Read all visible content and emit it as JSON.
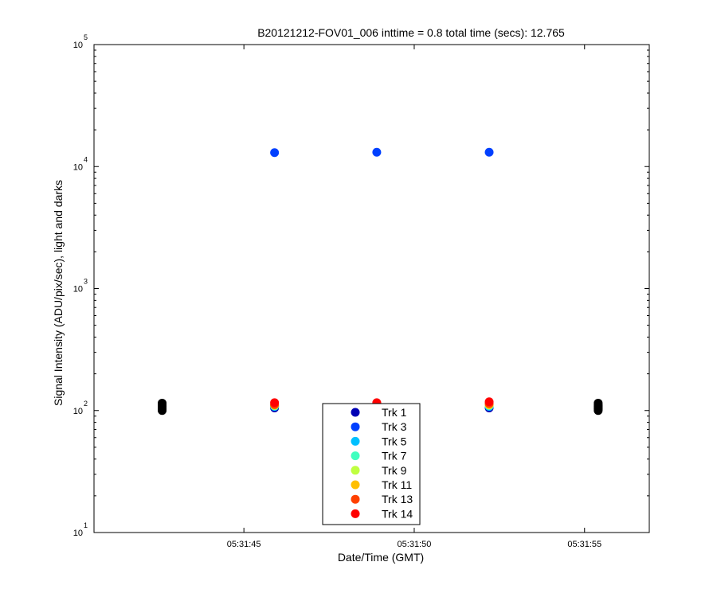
{
  "chart_data": {
    "type": "scatter",
    "title": "B20121212-FOV01_006 inttime = 0.8 total time (secs): 12.765",
    "xlabel": "Date/Time (GMT)",
    "ylabel": "Signal Intensity (ADU/pix/sec), light and darks",
    "y_scale": "log",
    "ylim": [
      10,
      100000
    ],
    "y_ticks": [
      {
        "value": 10,
        "base": "10",
        "exp": "1"
      },
      {
        "value": 100,
        "base": "10",
        "exp": "2"
      },
      {
        "value": 1000,
        "base": "10",
        "exp": "3"
      },
      {
        "value": 10000,
        "base": "10",
        "exp": "4"
      },
      {
        "value": 100000,
        "base": "10",
        "exp": "5"
      }
    ],
    "xlim": [
      "05:31:40.6",
      "05:31:56.9"
    ],
    "x_ticks": [
      "05:31:45",
      "05:31:50",
      "05:31:55"
    ],
    "grid": false,
    "legend_position": "bottom-center",
    "series": [
      {
        "name": "Trk 1",
        "color": "#0000b4",
        "x": [
          "05:31:45.9",
          "05:31:48.9",
          "05:31:52.2"
        ],
        "y": [
          105,
          112,
          105
        ]
      },
      {
        "name": "Trk 3",
        "color": "#0040ff",
        "x": [
          "05:31:45.9",
          "05:31:48.9",
          "05:31:52.2"
        ],
        "y": [
          13000,
          13100,
          13100
        ]
      },
      {
        "name": "Trk 5",
        "color": "#00c0ff",
        "x": [
          "05:31:45.9",
          "05:31:48.9",
          "05:31:52.2"
        ],
        "y": [
          108,
          113,
          108
        ]
      },
      {
        "name": "Trk 7",
        "color": "#40ffbf",
        "x": [
          "05:31:45.9",
          "05:31:48.9",
          "05:31:52.2"
        ],
        "y": [
          109,
          113,
          110
        ]
      },
      {
        "name": "Trk 9",
        "color": "#bfff40",
        "x": [
          "05:31:45.9",
          "05:31:48.9",
          "05:31:52.2"
        ],
        "y": [
          110,
          114,
          111
        ]
      },
      {
        "name": "Trk 11",
        "color": "#ffbf00",
        "x": [
          "05:31:45.9",
          "05:31:48.9",
          "05:31:52.2"
        ],
        "y": [
          111,
          114,
          112
        ]
      },
      {
        "name": "Trk 13",
        "color": "#ff4000",
        "x": [
          "05:31:45.9",
          "05:31:48.9",
          "05:31:52.2"
        ],
        "y": [
          112,
          115,
          114
        ]
      },
      {
        "name": "Trk 14",
        "color": "#ff0000",
        "x": [
          "05:31:45.9",
          "05:31:48.9",
          "05:31:52.2"
        ],
        "y": [
          116,
          116,
          118
        ]
      }
    ],
    "darks": {
      "color": "#000000",
      "x": [
        "05:31:42.6",
        "05:31:42.6",
        "05:31:42.6",
        "05:31:42.6",
        "05:31:42.6",
        "05:31:42.6",
        "05:31:42.6",
        "05:31:42.6",
        "05:31:55.4",
        "05:31:55.4",
        "05:31:55.4",
        "05:31:55.4",
        "05:31:55.4",
        "05:31:55.4",
        "05:31:55.4",
        "05:31:55.4"
      ],
      "y": [
        100,
        102,
        104,
        106,
        108,
        110,
        112,
        115,
        100,
        102,
        104,
        106,
        108,
        110,
        112,
        115
      ]
    }
  }
}
